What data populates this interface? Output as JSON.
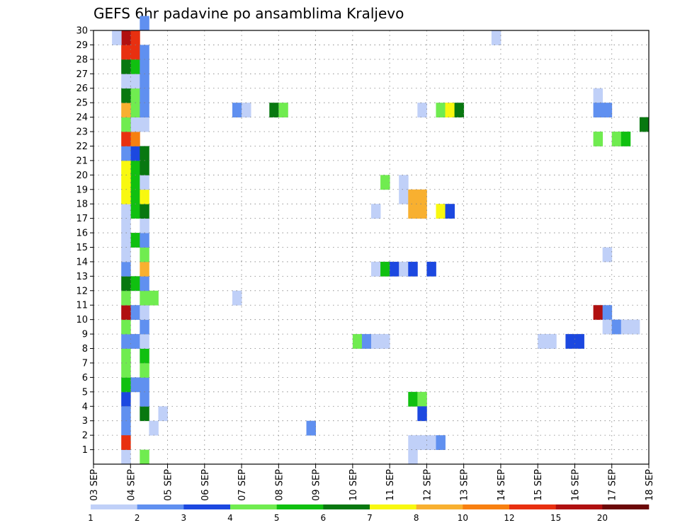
{
  "chart_data": {
    "type": "heatmap",
    "title": "GEFS 6hr padavine po ansamblima Kraljevo",
    "x_tick_labels": [
      "03 SEP",
      "04 SEP",
      "05 SEP",
      "06 SEP",
      "07 SEP",
      "08 SEP",
      "09 SEP",
      "10 SEP",
      "11 SEP",
      "12 SEP",
      "13 SEP",
      "14 SEP",
      "15 SEP",
      "16 SEP",
      "17 SEP",
      "18 SEP"
    ],
    "x_unit": "6-hour step",
    "x_range": [
      0,
      60
    ],
    "y_tick_labels": [
      "1",
      "2",
      "3",
      "4",
      "5",
      "6",
      "7",
      "8",
      "9",
      "10",
      "11",
      "12",
      "13",
      "14",
      "15",
      "16",
      "17",
      "18",
      "19",
      "20",
      "21",
      "22",
      "23",
      "24",
      "25",
      "26",
      "27",
      "28",
      "29",
      "30"
    ],
    "y_range": [
      0,
      30
    ],
    "grid": true,
    "color_scale": {
      "colors": [
        "#c0d0f8",
        "#6090f0",
        "#1c48e0",
        "#70ec50",
        "#10c010",
        "#087810",
        "#f8f810",
        "#f8b030",
        "#f88010",
        "#e83010",
        "#b01010",
        "#6c0808"
      ],
      "labels": [
        "1",
        "2",
        "3",
        "4",
        "5",
        "6",
        "7",
        "8",
        "10",
        "12",
        "15",
        "20"
      ]
    },
    "cells": [
      [
        3,
        0,
        0
      ],
      [
        3,
        2,
        1
      ],
      [
        3,
        4,
        2
      ],
      [
        4,
        5,
        1
      ],
      [
        4,
        8,
        1
      ],
      [
        4,
        10,
        1
      ],
      [
        4,
        12,
        4
      ],
      [
        4,
        15,
        4
      ],
      [
        4,
        17,
        4
      ],
      [
        4,
        18,
        4
      ],
      [
        4,
        19,
        4
      ],
      [
        4,
        20,
        4
      ],
      [
        4,
        21,
        2
      ],
      [
        4,
        22,
        8
      ],
      [
        4,
        23,
        0
      ],
      [
        4,
        24,
        3
      ],
      [
        4,
        25,
        3
      ],
      [
        4,
        26,
        0
      ],
      [
        4,
        27,
        4
      ],
      [
        4,
        28,
        9
      ],
      [
        4,
        29,
        9
      ],
      [
        3,
        1,
        9
      ],
      [
        3,
        3,
        1
      ],
      [
        3,
        5,
        4
      ],
      [
        3,
        6,
        3
      ],
      [
        3,
        7,
        3
      ],
      [
        3,
        8,
        1
      ],
      [
        3,
        9,
        3
      ],
      [
        3,
        10,
        10
      ],
      [
        3,
        11,
        3
      ],
      [
        3,
        12,
        5
      ],
      [
        3,
        13,
        1
      ],
      [
        3,
        14,
        0
      ],
      [
        3,
        15,
        0
      ],
      [
        3,
        16,
        0
      ],
      [
        3,
        17,
        0
      ],
      [
        3,
        18,
        6
      ],
      [
        3,
        19,
        6
      ],
      [
        3,
        20,
        6
      ],
      [
        3,
        21,
        1
      ],
      [
        3,
        22,
        9
      ],
      [
        3,
        23,
        3
      ],
      [
        3,
        24,
        7
      ],
      [
        3,
        25,
        5
      ],
      [
        3,
        26,
        0
      ],
      [
        3,
        27,
        5
      ],
      [
        3,
        28,
        9
      ],
      [
        3,
        29,
        10
      ],
      [
        2,
        29,
        0
      ],
      [
        5,
        0,
        3
      ],
      [
        5,
        3,
        5
      ],
      [
        5,
        4,
        1
      ],
      [
        5,
        5,
        1
      ],
      [
        5,
        6,
        3
      ],
      [
        5,
        7,
        4
      ],
      [
        5,
        8,
        0
      ],
      [
        5,
        9,
        1
      ],
      [
        5,
        10,
        0
      ],
      [
        5,
        11,
        3
      ],
      [
        5,
        12,
        1
      ],
      [
        5,
        13,
        7
      ],
      [
        5,
        14,
        3
      ],
      [
        5,
        15,
        1
      ],
      [
        5,
        16,
        0
      ],
      [
        5,
        17,
        5
      ],
      [
        5,
        18,
        6
      ],
      [
        5,
        19,
        0
      ],
      [
        5,
        20,
        5
      ],
      [
        5,
        21,
        5
      ],
      [
        5,
        23,
        0
      ],
      [
        5,
        24,
        1
      ],
      [
        5,
        25,
        1
      ],
      [
        5,
        26,
        1
      ],
      [
        5,
        27,
        1
      ],
      [
        5,
        28,
        1
      ],
      [
        5,
        30,
        1
      ],
      [
        6,
        11,
        3
      ],
      [
        6,
        2,
        0
      ],
      [
        7,
        3,
        0
      ],
      [
        15,
        11,
        0
      ],
      [
        15,
        24,
        1
      ],
      [
        16,
        24,
        0
      ],
      [
        19,
        24,
        5
      ],
      [
        20,
        24,
        3
      ],
      [
        23,
        2,
        1
      ],
      [
        28,
        8,
        3
      ],
      [
        29,
        8,
        1
      ],
      [
        30,
        8,
        0
      ],
      [
        31,
        8,
        0
      ],
      [
        30,
        13,
        0
      ],
      [
        31,
        13,
        4
      ],
      [
        32,
        13,
        2
      ],
      [
        33,
        13,
        0
      ],
      [
        34,
        13,
        2
      ],
      [
        36,
        13,
        2
      ],
      [
        30,
        17,
        0
      ],
      [
        33,
        18,
        0
      ],
      [
        34,
        18,
        7
      ],
      [
        35,
        18,
        7
      ],
      [
        34,
        17,
        7
      ],
      [
        35,
        17,
        7
      ],
      [
        31,
        19,
        3
      ],
      [
        33,
        19,
        0
      ],
      [
        34,
        1,
        0
      ],
      [
        34,
        0,
        0
      ],
      [
        35,
        1,
        0
      ],
      [
        36,
        1,
        0
      ],
      [
        37,
        1,
        1
      ],
      [
        34,
        4,
        4
      ],
      [
        35,
        4,
        3
      ],
      [
        35,
        3,
        2
      ],
      [
        35,
        24,
        0
      ],
      [
        37,
        24,
        3
      ],
      [
        38,
        24,
        6
      ],
      [
        39,
        24,
        5
      ],
      [
        37,
        17,
        6
      ],
      [
        38,
        17,
        2
      ],
      [
        43,
        29,
        0
      ],
      [
        48,
        8,
        0
      ],
      [
        49,
        8,
        0
      ],
      [
        51,
        8,
        2
      ],
      [
        52,
        8,
        2
      ],
      [
        54,
        25,
        0
      ],
      [
        54,
        24,
        1
      ],
      [
        55,
        24,
        1
      ],
      [
        54,
        22,
        3
      ],
      [
        56,
        22,
        3
      ],
      [
        57,
        22,
        4
      ],
      [
        54,
        10,
        10
      ],
      [
        55,
        10,
        1
      ],
      [
        55,
        9,
        0
      ],
      [
        56,
        9,
        1
      ],
      [
        57,
        9,
        0
      ],
      [
        58,
        9,
        0
      ],
      [
        55,
        14,
        0
      ],
      [
        59,
        23,
        5
      ]
    ]
  }
}
